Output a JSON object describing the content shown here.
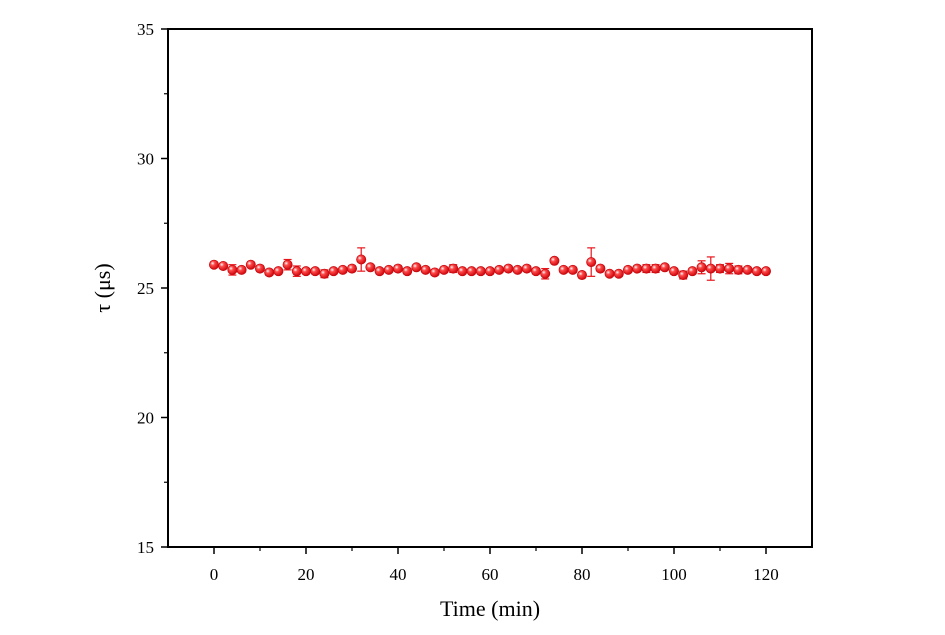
{
  "chart_data": {
    "type": "scatter",
    "title": "",
    "xlabel": "Time (min)",
    "ylabel": "τ (μs)",
    "xlim": [
      -10,
      130
    ],
    "ylim": [
      15,
      35
    ],
    "xticks": [
      0,
      20,
      40,
      60,
      80,
      100,
      120
    ],
    "yticks": [
      15,
      20,
      25,
      30,
      35
    ],
    "xtick_labels": [
      "0",
      "20",
      "40",
      "60",
      "80",
      "100",
      "120"
    ],
    "ytick_labels": [
      "15",
      "20",
      "25",
      "30",
      "35"
    ],
    "grid": false,
    "legend": "none",
    "marker_color": "#e8151b",
    "errorbar_color": "#e8151b",
    "series": [
      {
        "x": [
          0,
          2,
          4,
          6,
          8,
          10,
          12,
          14,
          16,
          18,
          20,
          22,
          24,
          26,
          28,
          30,
          32,
          34,
          36,
          38,
          40,
          42,
          44,
          46,
          48,
          50,
          52,
          54,
          56,
          58,
          60,
          62,
          64,
          66,
          68,
          70,
          72,
          74,
          76,
          78,
          80,
          82,
          84,
          86,
          88,
          90,
          92,
          94,
          96,
          98,
          100,
          102,
          104,
          106,
          108,
          110,
          112,
          114,
          116,
          118,
          120
        ],
        "y": [
          25.9,
          25.85,
          25.7,
          25.7,
          25.9,
          25.75,
          25.6,
          25.65,
          25.9,
          25.65,
          25.65,
          25.65,
          25.55,
          25.65,
          25.7,
          25.75,
          26.1,
          25.8,
          25.65,
          25.7,
          25.75,
          25.65,
          25.8,
          25.7,
          25.6,
          25.7,
          25.75,
          25.65,
          25.65,
          25.65,
          25.65,
          25.7,
          25.75,
          25.7,
          25.75,
          25.65,
          25.55,
          26.05,
          25.7,
          25.7,
          25.5,
          26.0,
          25.75,
          25.55,
          25.55,
          25.7,
          25.75,
          25.75,
          25.75,
          25.8,
          25.65,
          25.5,
          25.65,
          25.8,
          25.75,
          25.75,
          25.75,
          25.7,
          25.7,
          25.65,
          25.65
        ],
        "err": [
          0.05,
          0.1,
          0.2,
          0.1,
          0.05,
          0.1,
          0.1,
          0.1,
          0.2,
          0.2,
          0.1,
          0.1,
          0.15,
          0.1,
          0.1,
          0.1,
          0.45,
          0.1,
          0.1,
          0.05,
          0.1,
          0.1,
          0.1,
          0.1,
          0.1,
          0.1,
          0.15,
          0.1,
          0.1,
          0.1,
          0.1,
          0.1,
          0.1,
          0.1,
          0.1,
          0.1,
          0.2,
          0.05,
          0.1,
          0.1,
          0.1,
          0.55,
          0.1,
          0.1,
          0.1,
          0.1,
          0.1,
          0.15,
          0.15,
          0.1,
          0.1,
          0.15,
          0.1,
          0.25,
          0.45,
          0.15,
          0.2,
          0.15,
          0.1,
          0.1,
          0.1
        ]
      }
    ]
  }
}
